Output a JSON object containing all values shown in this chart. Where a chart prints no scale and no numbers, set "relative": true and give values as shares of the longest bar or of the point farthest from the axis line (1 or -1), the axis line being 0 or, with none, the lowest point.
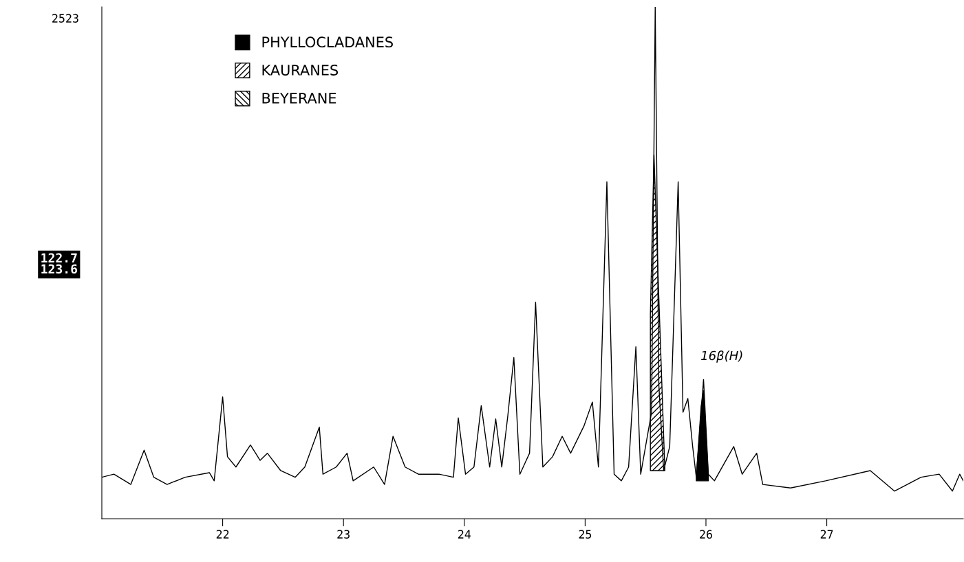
{
  "chart_data": {
    "type": "line",
    "relative": true,
    "xlim": [
      21.0,
      28.13
    ],
    "xticks": [
      22,
      23,
      24,
      25,
      26,
      27
    ],
    "legend": "top left",
    "grid": false,
    "annotations": [
      "2523",
      "122.7\n123.6",
      "16β(H)"
    ],
    "series": [
      {
        "color": "#000000",
        "x": [
          21.0,
          21.1,
          21.24,
          21.35,
          21.43,
          21.54,
          21.69,
          21.89,
          21.93,
          22.0,
          22.04,
          22.11,
          22.23,
          22.31,
          22.37,
          22.48,
          22.6,
          22.68,
          22.8,
          22.83,
          22.94,
          23.03,
          23.08,
          23.25,
          23.34,
          23.41,
          23.51,
          23.62,
          23.79,
          23.91,
          23.95,
          24.01,
          24.08,
          24.14,
          24.21,
          24.26,
          24.31,
          24.36,
          24.41,
          24.46,
          24.54,
          24.59,
          24.65,
          24.73,
          24.81,
          24.88,
          24.99,
          25.06,
          25.11,
          25.18,
          25.24,
          25.3,
          25.36,
          25.42,
          25.46,
          25.52,
          25.55,
          25.58,
          25.61,
          25.65,
          25.7,
          25.77,
          25.81,
          25.85,
          25.89,
          25.92,
          25.98,
          26.02,
          26.07,
          26.23,
          26.3,
          26.42,
          26.47,
          26.7,
          26.99,
          27.36,
          27.56,
          27.78,
          27.93,
          28.04,
          28.1,
          28.13
        ],
        "values": [
          0.081,
          0.087,
          0.067,
          0.134,
          0.081,
          0.067,
          0.081,
          0.09,
          0.074,
          0.238,
          0.121,
          0.101,
          0.144,
          0.114,
          0.128,
          0.094,
          0.081,
          0.101,
          0.179,
          0.087,
          0.101,
          0.128,
          0.074,
          0.101,
          0.067,
          0.161,
          0.101,
          0.087,
          0.087,
          0.081,
          0.197,
          0.087,
          0.101,
          0.221,
          0.101,
          0.195,
          0.101,
          0.201,
          0.315,
          0.087,
          0.128,
          0.423,
          0.101,
          0.121,
          0.161,
          0.128,
          0.181,
          0.228,
          0.101,
          0.658,
          0.087,
          0.074,
          0.101,
          0.336,
          0.087,
          0.168,
          0.208,
          1.0,
          0.262,
          0.094,
          0.141,
          0.658,
          0.208,
          0.235,
          0.141,
          0.081,
          0.272,
          0.087,
          0.074,
          0.141,
          0.087,
          0.128,
          0.067,
          0.06,
          0.074,
          0.094,
          0.054,
          0.081,
          0.087,
          0.054,
          0.087,
          0.074
        ]
      },
      {
        "type": "area",
        "name": "PHYLLOCLADANES",
        "color": "#000000",
        "x": [
          25.92,
          25.92,
          25.96,
          25.98,
          26.02,
          26.02
        ],
        "values": [
          0.074,
          0.081,
          0.22,
          0.25,
          0.081,
          0.074
        ]
      },
      {
        "type": "area",
        "name": "KAURANES",
        "color": "#000000",
        "x": [
          25.54,
          25.54,
          25.57,
          25.6,
          25.66
        ],
        "values": [
          0.094,
          0.4,
          0.711,
          0.5,
          0.094
        ]
      },
      {
        "type": "area",
        "name": "BEYERANE",
        "color": "#000000"
      }
    ]
  }
}
